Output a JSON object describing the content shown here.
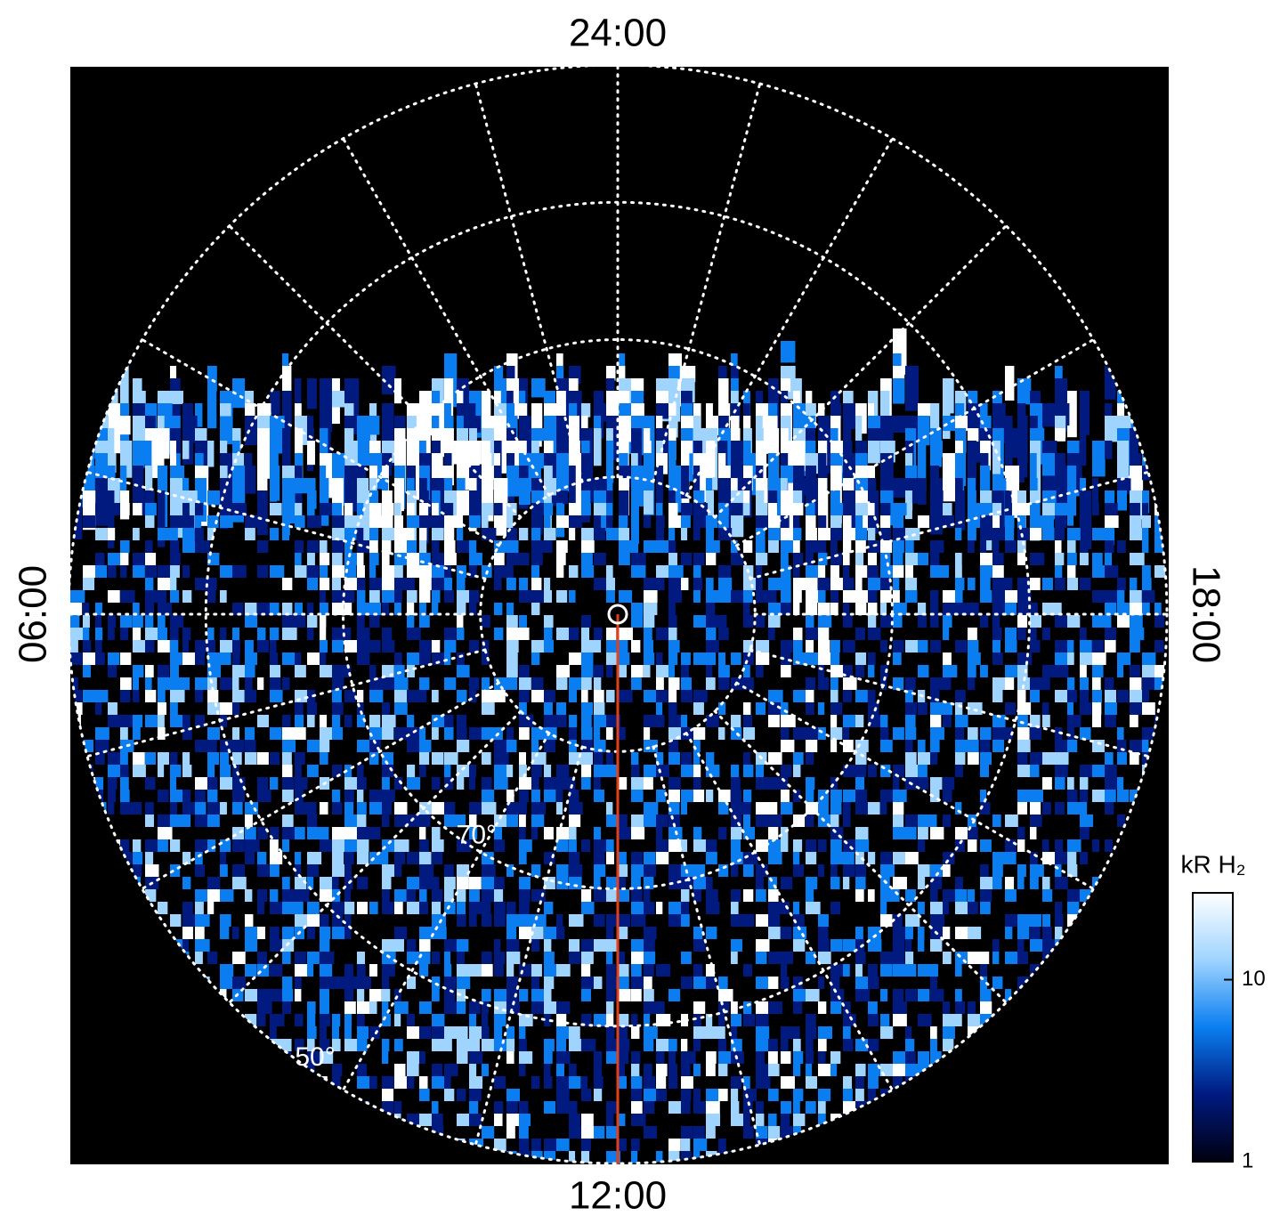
{
  "chart_data": {
    "type": "polar-image",
    "local_time_labels": {
      "top": "24:00",
      "left": "06:00",
      "bottom": "12:00",
      "right": "18:00"
    },
    "rlim": [
      90,
      50
    ],
    "latitude_circles": [
      50,
      60,
      70,
      80
    ],
    "latitude_labels": [
      {
        "value": 70,
        "label": "70°"
      },
      {
        "value": 50,
        "label": "50°"
      }
    ],
    "colorbar": {
      "title": "kR H₂",
      "log": true,
      "ylim": [
        1,
        30
      ],
      "yticks": [
        1,
        10
      ],
      "colors": [
        "#000010",
        "#001a80",
        "#0a7ef0",
        "#9fd4ff",
        "#ffffff"
      ]
    }
  }
}
